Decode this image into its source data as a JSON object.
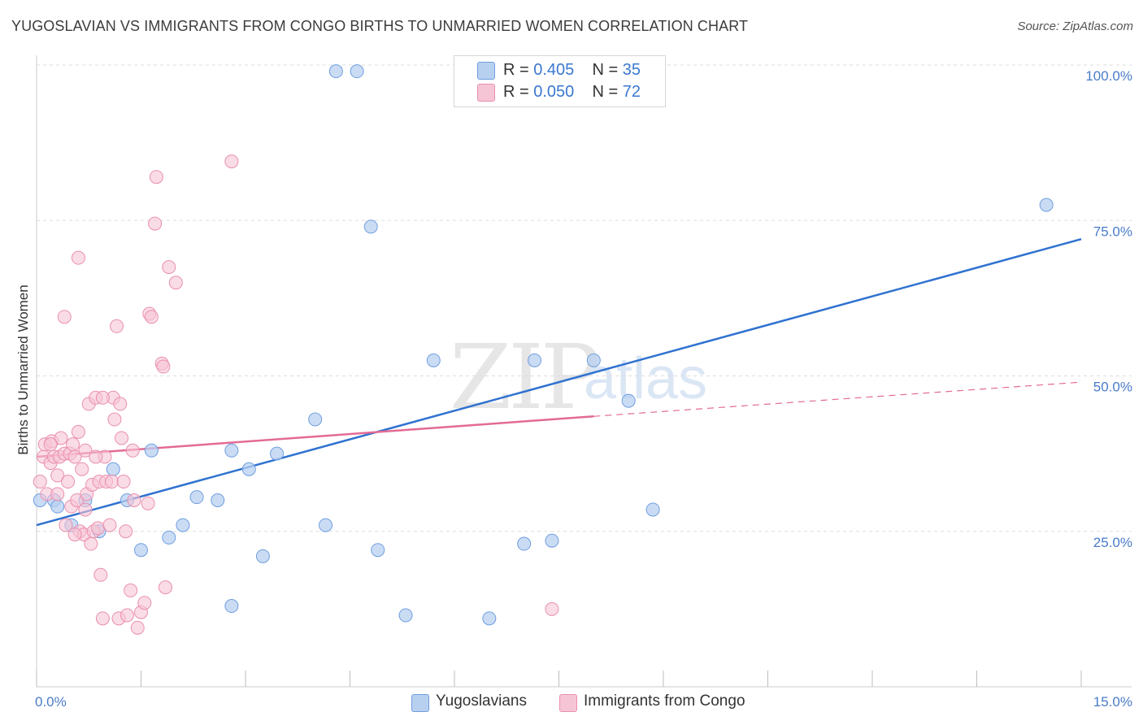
{
  "header": {
    "title": "YUGOSLAVIAN VS IMMIGRANTS FROM CONGO BIRTHS TO UNMARRIED WOMEN CORRELATION CHART",
    "source": "Source: ZipAtlas.com"
  },
  "watermark": {
    "zip": "ZIP",
    "atlas": "atlas"
  },
  "legend": {
    "r_label": "R = ",
    "n_label": "N = ",
    "series1": {
      "r": "0.405",
      "n": "35"
    },
    "series2": {
      "r": "0.050",
      "n": "72"
    }
  },
  "bottom_legend": {
    "series1": "Yugoslavians",
    "series2": "Immigrants from Congo"
  },
  "colors": {
    "blue_fill": "#b8d0f0",
    "blue_stroke": "#6f9ee0",
    "blue_line": "#2f72d0",
    "pink_fill": "#f6c5d5",
    "pink_stroke": "#ea8fae",
    "pink_line": "#e36b95",
    "grid": "#dddddd",
    "tick_text": "#4a7cc9"
  },
  "chart_data": {
    "type": "scatter",
    "title": "YUGOSLAVIAN VS IMMIGRANTS FROM CONGO BIRTHS TO UNMARRIED WOMEN CORRELATION CHART",
    "xlabel": "",
    "ylabel": "Births to Unmarried Women",
    "xlim": [
      0,
      15
    ],
    "ylim": [
      0,
      100
    ],
    "x_tick_labels": [
      "0.0%",
      "15.0%"
    ],
    "y_tick_labels": [
      "25.0%",
      "50.0%",
      "75.0%",
      "100.0%"
    ],
    "y_ticks": [
      25,
      50,
      75,
      100
    ],
    "grid": true,
    "legend_position": "top-center",
    "series": [
      {
        "name": "Yugoslavians",
        "R": 0.405,
        "N": 35,
        "trend": {
          "x": [
            0,
            15
          ],
          "y": [
            26,
            72
          ]
        },
        "points": [
          [
            0.05,
            30
          ],
          [
            0.25,
            30
          ],
          [
            0.5,
            26
          ],
          [
            0.7,
            30
          ],
          [
            0.9,
            25
          ],
          [
            1.1,
            35
          ],
          [
            1.3,
            30
          ],
          [
            1.5,
            22
          ],
          [
            1.65,
            38
          ],
          [
            1.9,
            24
          ],
          [
            2.1,
            26
          ],
          [
            2.3,
            30.5
          ],
          [
            2.6,
            30
          ],
          [
            2.8,
            38
          ],
          [
            2.8,
            13
          ],
          [
            3.05,
            35
          ],
          [
            3.25,
            21
          ],
          [
            3.45,
            37.5
          ],
          [
            4.0,
            43
          ],
          [
            4.15,
            26
          ],
          [
            4.3,
            99
          ],
          [
            4.6,
            99
          ],
          [
            4.8,
            74
          ],
          [
            4.9,
            22
          ],
          [
            5.3,
            11.5
          ],
          [
            5.7,
            52.5
          ],
          [
            6.5,
            11
          ],
          [
            7.0,
            23
          ],
          [
            7.15,
            52.5
          ],
          [
            7.4,
            23.5
          ],
          [
            8.0,
            52.5
          ],
          [
            8.5,
            46
          ],
          [
            8.85,
            28.5
          ],
          [
            14.5,
            77.5
          ],
          [
            0.3,
            29
          ]
        ]
      },
      {
        "name": "Immigrants from Congo",
        "R": 0.05,
        "N": 72,
        "trend": {
          "x": [
            0,
            8
          ],
          "y": [
            37,
            43.5
          ]
        },
        "trend_dashed": {
          "x": [
            8,
            15
          ],
          "y": [
            43.5,
            49
          ]
        },
        "points": [
          [
            0.05,
            33
          ],
          [
            0.1,
            37
          ],
          [
            0.12,
            39
          ],
          [
            0.15,
            31
          ],
          [
            0.2,
            36
          ],
          [
            0.22,
            39.5
          ],
          [
            0.25,
            37
          ],
          [
            0.3,
            34
          ],
          [
            0.33,
            37
          ],
          [
            0.35,
            40
          ],
          [
            0.4,
            37.5
          ],
          [
            0.42,
            26
          ],
          [
            0.45,
            33
          ],
          [
            0.48,
            37.5
          ],
          [
            0.5,
            29
          ],
          [
            0.52,
            39
          ],
          [
            0.55,
            37
          ],
          [
            0.58,
            30
          ],
          [
            0.6,
            41
          ],
          [
            0.62,
            25
          ],
          [
            0.65,
            35
          ],
          [
            0.68,
            24.5
          ],
          [
            0.7,
            38
          ],
          [
            0.72,
            31
          ],
          [
            0.75,
            45.5
          ],
          [
            0.78,
            23
          ],
          [
            0.8,
            32.5
          ],
          [
            0.82,
            25
          ],
          [
            0.85,
            46.5
          ],
          [
            0.88,
            25.5
          ],
          [
            0.9,
            33
          ],
          [
            0.92,
            18
          ],
          [
            0.95,
            11
          ],
          [
            0.98,
            37
          ],
          [
            1.0,
            33
          ],
          [
            1.05,
            26
          ],
          [
            1.08,
            33
          ],
          [
            1.1,
            46.5
          ],
          [
            1.12,
            43
          ],
          [
            1.15,
            58
          ],
          [
            1.18,
            11
          ],
          [
            1.2,
            45.5
          ],
          [
            1.22,
            40
          ],
          [
            1.25,
            33
          ],
          [
            1.28,
            25
          ],
          [
            1.3,
            11.5
          ],
          [
            1.35,
            15.5
          ],
          [
            1.38,
            38
          ],
          [
            1.4,
            30
          ],
          [
            1.45,
            9.5
          ],
          [
            1.5,
            12
          ],
          [
            1.55,
            13.5
          ],
          [
            1.6,
            29.5
          ],
          [
            1.62,
            60
          ],
          [
            1.65,
            59.5
          ],
          [
            1.7,
            74.5
          ],
          [
            1.72,
            82
          ],
          [
            1.8,
            52
          ],
          [
            1.82,
            51.5
          ],
          [
            1.85,
            16
          ],
          [
            1.9,
            67.5
          ],
          [
            2.0,
            65
          ],
          [
            0.6,
            69
          ],
          [
            0.4,
            59.5
          ],
          [
            0.95,
            46.5
          ],
          [
            0.3,
            31
          ],
          [
            0.55,
            24.5
          ],
          [
            0.7,
            28.5
          ],
          [
            0.85,
            37
          ],
          [
            2.8,
            84.5
          ],
          [
            7.4,
            12.5
          ],
          [
            0.2,
            39
          ]
        ]
      }
    ]
  }
}
